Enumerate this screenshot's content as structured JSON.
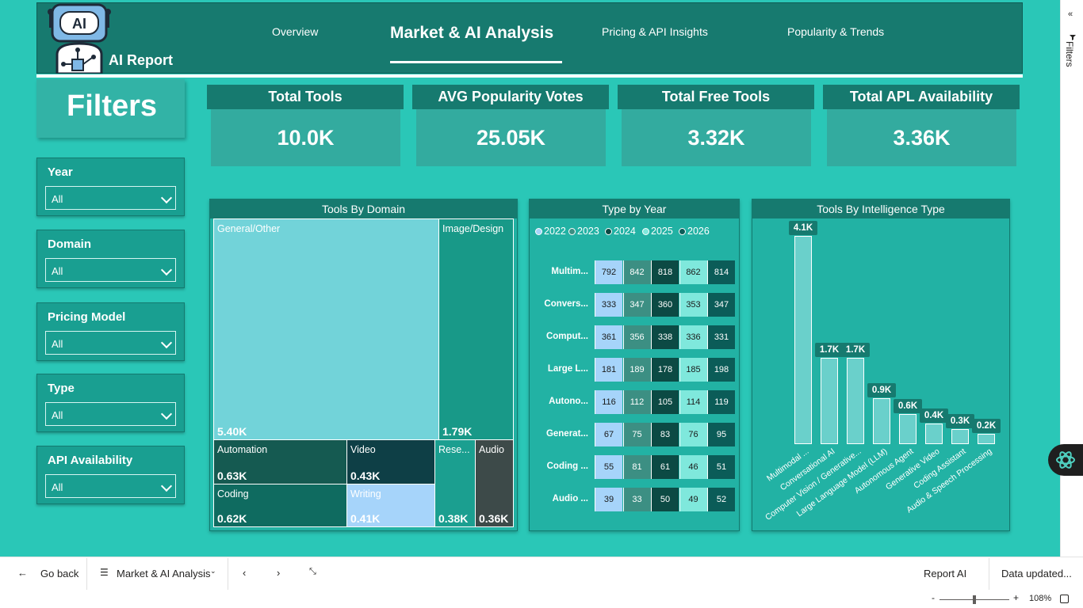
{
  "header": {
    "report_title": "AI Report",
    "logo_text": "AI",
    "nav": [
      {
        "label": "Overview"
      },
      {
        "label": "Market & AI Analysis"
      },
      {
        "label": "Pricing & API Insights"
      },
      {
        "label": "Popularity & Trends"
      }
    ]
  },
  "filters": {
    "title": "Filters",
    "items": [
      {
        "label": "Year",
        "value": "All"
      },
      {
        "label": "Domain",
        "value": "All"
      },
      {
        "label": "Pricing Model",
        "value": "All"
      },
      {
        "label": "Type",
        "value": "All"
      },
      {
        "label": "API Availability",
        "value": "All"
      }
    ]
  },
  "kpis": [
    {
      "label": "Total Tools",
      "value": "10.0K"
    },
    {
      "label": "AVG Popularity Votes",
      "value": "25.05K"
    },
    {
      "label": "Total Free Tools",
      "value": "3.32K"
    },
    {
      "label": "Total APL Availability",
      "value": "3.36K"
    }
  ],
  "treemap": {
    "title": "Tools By Domain",
    "cells": [
      {
        "name": "General/Other",
        "label": "5.40K"
      },
      {
        "name": "Image/Design",
        "label": "1.79K"
      },
      {
        "name": "Automation",
        "label": "0.63K"
      },
      {
        "name": "Video",
        "label": "0.43K"
      },
      {
        "name": "Coding",
        "label": "0.62K"
      },
      {
        "name": "Writing",
        "label": "0.41K"
      },
      {
        "name": "Rese...",
        "label": "0.38K"
      },
      {
        "name": "Audio",
        "label": "0.36K"
      }
    ]
  },
  "matrix": {
    "title": "Type by Year",
    "years": [
      "2022",
      "2023",
      "2024",
      "2025",
      "2026"
    ],
    "colors": [
      "#a6d4fa",
      "#3c8f83",
      "#0c4a44",
      "#7fe8dc",
      "#0b5c58"
    ],
    "rows": [
      {
        "label": "Multim...",
        "values": [
          792,
          842,
          818,
          862,
          814
        ]
      },
      {
        "label": "Convers...",
        "values": [
          333,
          347,
          360,
          353,
          347
        ]
      },
      {
        "label": "Comput...",
        "values": [
          361,
          356,
          338,
          336,
          331
        ]
      },
      {
        "label": "Large L...",
        "values": [
          181,
          189,
          178,
          185,
          198
        ]
      },
      {
        "label": "Autono...",
        "values": [
          116,
          112,
          105,
          114,
          119
        ]
      },
      {
        "label": "Generat...",
        "values": [
          67,
          75,
          83,
          76,
          95
        ]
      },
      {
        "label": "Coding ...",
        "values": [
          55,
          81,
          61,
          46,
          51
        ]
      },
      {
        "label": "Audio ...",
        "values": [
          39,
          33,
          50,
          49,
          52
        ]
      }
    ]
  },
  "chart_data": {
    "type": "bar",
    "title": "Tools By Intelligence Type",
    "categories": [
      "Multimodal ...",
      "Conversational AI",
      "Computer Vision / Generative...",
      "Large Language Model (LLM)",
      "Autonomous Agent",
      "Generative Video",
      "Coding Assistant",
      "Audio & Speech Processing"
    ],
    "values": [
      4100,
      1700,
      1700,
      900,
      600,
      400,
      300,
      200
    ],
    "data_labels": [
      "4.1K",
      "1.7K",
      "1.7K",
      "0.9K",
      "0.6K",
      "0.4K",
      "0.3K",
      "0.2K"
    ],
    "ylim": [
      0,
      4100
    ]
  },
  "right_pane": {
    "label": "Filters"
  },
  "bottom_bar": {
    "go_back": "Go back",
    "page_name": "Market & AI Analysis",
    "report_name": "Report AI",
    "data_updated": "Data updated...",
    "zoom": "108%",
    "zoom_minus": "-",
    "zoom_plus": "+"
  }
}
